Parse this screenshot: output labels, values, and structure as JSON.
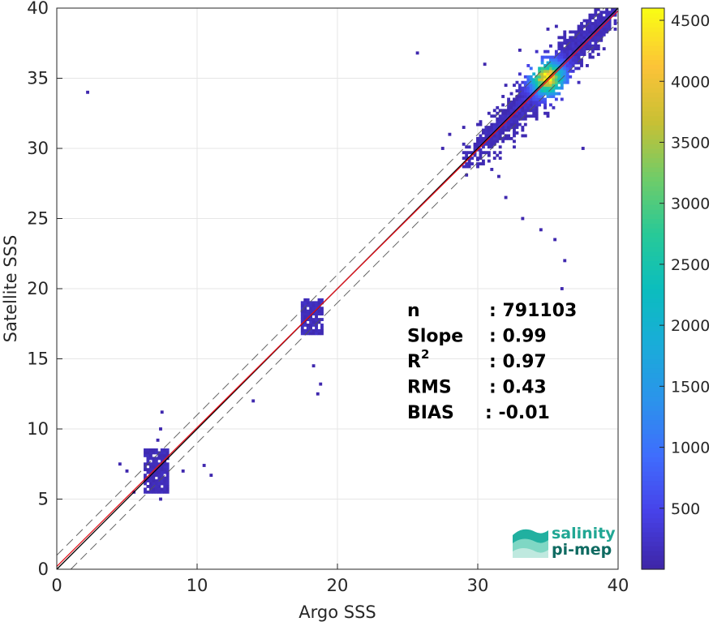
{
  "chart_data": {
    "type": "heatmap",
    "subtype": "2D density scatter (Argo vs Satellite SSS)",
    "xlabel": "Argo SSS",
    "ylabel": "Satellite SSS",
    "xlim": [
      0,
      40
    ],
    "ylim": [
      0,
      40
    ],
    "xticks": [
      "0",
      "10",
      "20",
      "30",
      "40"
    ],
    "yticks": [
      "0",
      "5",
      "10",
      "15",
      "20",
      "25",
      "30",
      "35",
      "40"
    ],
    "grid": true,
    "lines": [
      {
        "name": "one-to-one",
        "slope": 1,
        "intercept": 0,
        "color": "#000000"
      },
      {
        "name": "regression",
        "slope": 0.99,
        "intercept": 0.2,
        "color": "#e3101a"
      },
      {
        "name": "upper-bound",
        "slope": 1,
        "intercept": 1,
        "color": "#555555",
        "dash": true
      },
      {
        "name": "lower-bound",
        "slope": 1,
        "intercept": -1,
        "color": "#555555",
        "dash": true
      }
    ],
    "clusters": [
      {
        "x": [
          6.3,
          8.0
        ],
        "y": [
          5.5,
          8.5
        ],
        "peak": 700
      },
      {
        "x": [
          17.5,
          19.0
        ],
        "y": [
          16.8,
          19.2
        ],
        "peak": 900
      },
      {
        "x": [
          29.0,
          40.0
        ],
        "y": [
          27.5,
          40.0
        ],
        "peak": 4500,
        "center": [
          35,
          35
        ]
      }
    ],
    "stats": [
      {
        "label": "n",
        "value": ": 791103"
      },
      {
        "label": "Slope",
        "value": ": 0.99"
      },
      {
        "label": "R",
        "sup": "2",
        "value": ": 0.97"
      },
      {
        "label": "RMS",
        "value": ": 0.43"
      },
      {
        "label": "BIAS",
        "value": ": -0.01"
      }
    ],
    "colorbar": {
      "colormap": "parula",
      "min": 0,
      "max": 4600,
      "ticks": [
        "500",
        "1000",
        "1500",
        "2000",
        "2500",
        "3000",
        "3500",
        "4000",
        "4500"
      ]
    }
  },
  "logo": {
    "line1": "salinity",
    "line2": "pi-mep",
    "colors": [
      "#21b0a0",
      "#7fd7c4",
      "#bfe9df"
    ]
  }
}
